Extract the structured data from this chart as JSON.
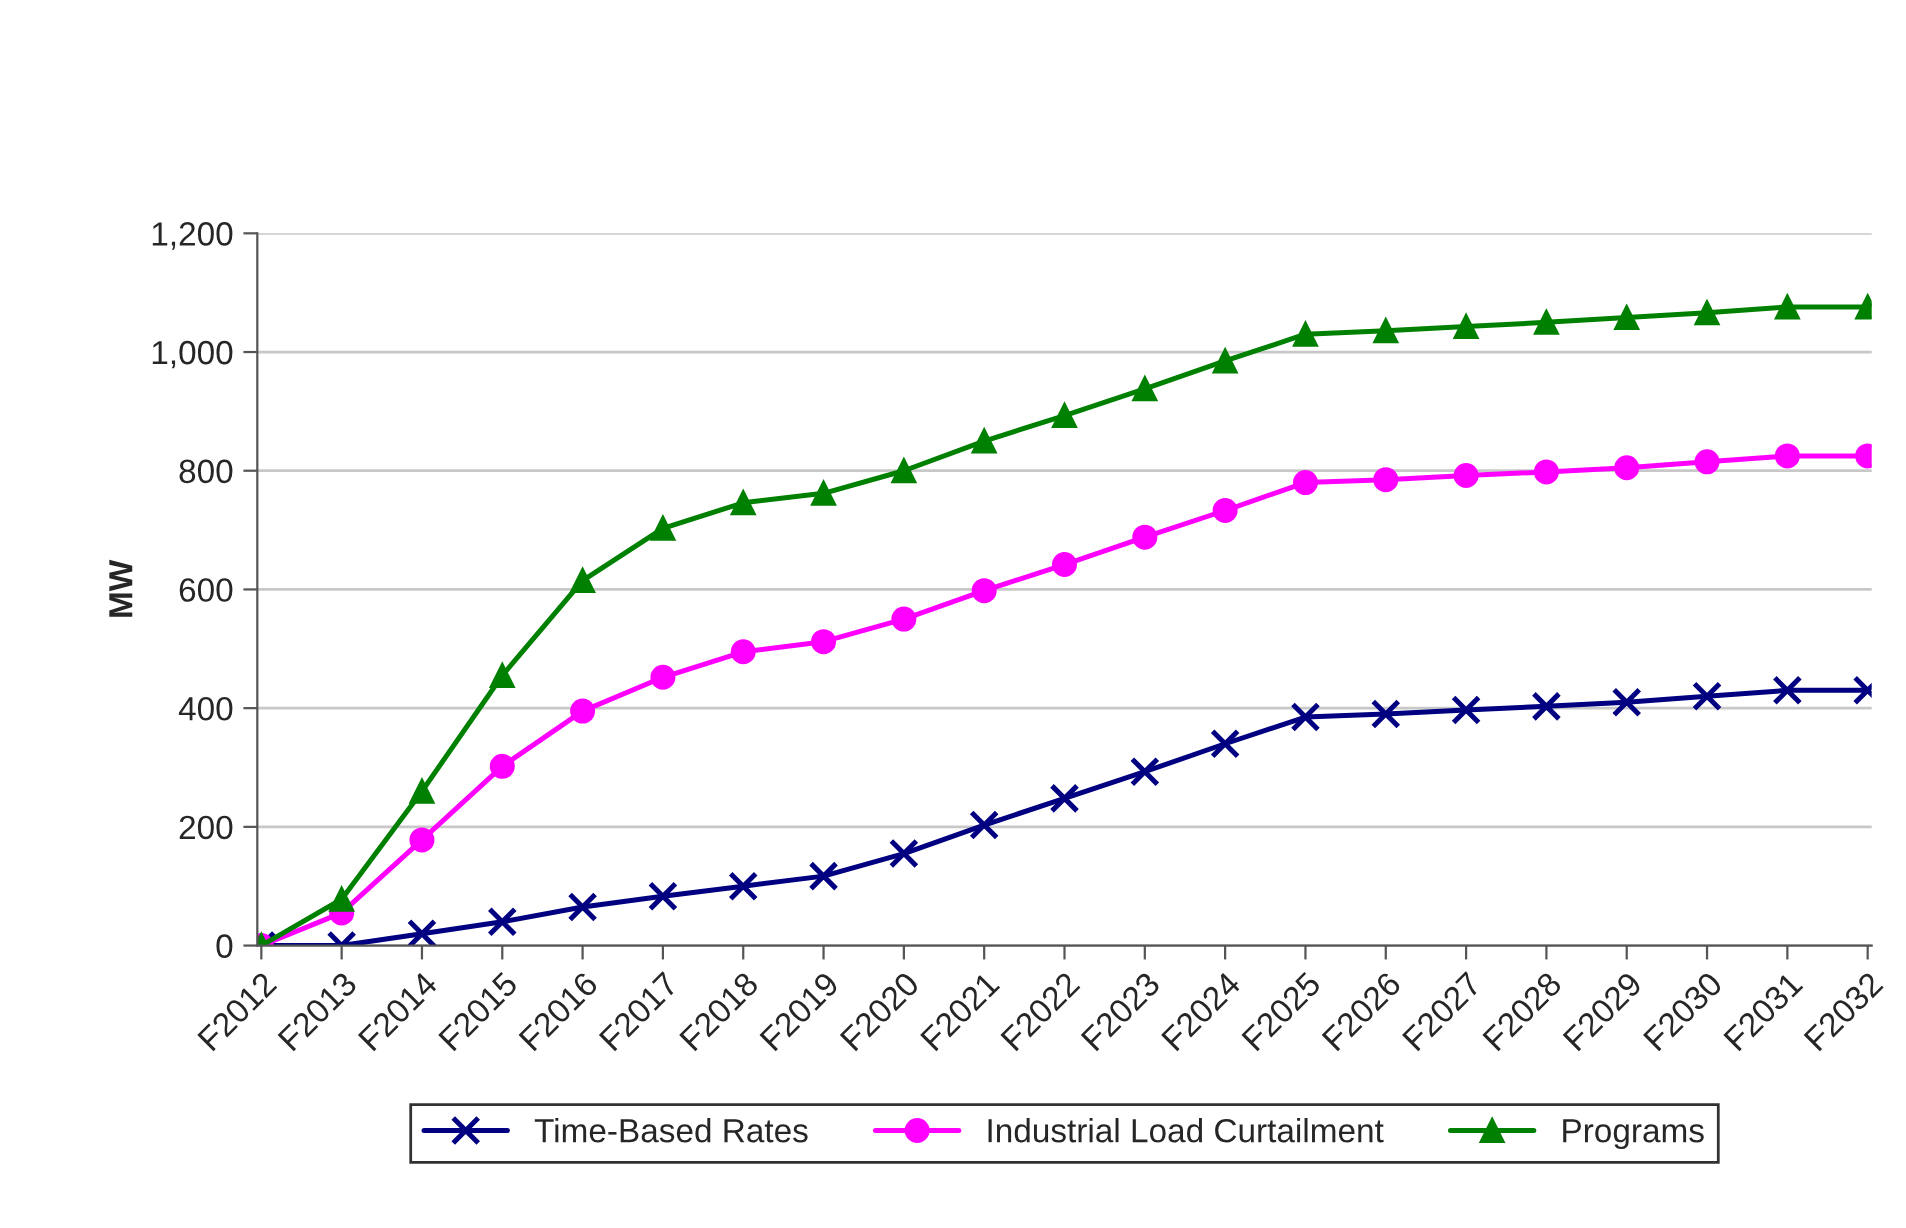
{
  "chart_data": {
    "type": "line",
    "ylabel": "MW",
    "categories": [
      "F2012",
      "F2013",
      "F2014",
      "F2015",
      "F2016",
      "F2017",
      "F2018",
      "F2019",
      "F2020",
      "F2021",
      "F2022",
      "F2023",
      "F2024",
      "F2025",
      "F2026",
      "F2027",
      "F2028",
      "F2029",
      "F2030",
      "F2031",
      "F2032"
    ],
    "series": [
      {
        "name": "Time-Based Rates",
        "color": "#000080",
        "marker": "cross",
        "values": [
          0,
          0,
          20,
          40,
          65,
          83,
          100,
          117,
          155,
          203,
          248,
          293,
          340,
          385,
          390,
          397,
          403,
          410,
          420,
          430,
          430
        ]
      },
      {
        "name": "Industrial Load Curtailment",
        "color": "#ff00ff",
        "marker": "circle",
        "values": [
          0,
          55,
          178,
          302,
          395,
          452,
          495,
          512,
          550,
          598,
          642,
          688,
          733,
          780,
          785,
          792,
          798,
          805,
          815,
          825,
          825
        ]
      },
      {
        "name": "Programs",
        "color": "#008000",
        "marker": "triangle",
        "values": [
          0,
          78,
          260,
          455,
          615,
          703,
          746,
          762,
          800,
          850,
          893,
          938,
          985,
          1030,
          1036,
          1043,
          1050,
          1058,
          1066,
          1076,
          1076
        ]
      }
    ],
    "ylim": [
      0,
      1200
    ],
    "yticks": [
      {
        "value": 0,
        "label": "0"
      },
      {
        "value": 200,
        "label": "200"
      },
      {
        "value": 400,
        "label": "400"
      },
      {
        "value": 600,
        "label": "600"
      },
      {
        "value": 800,
        "label": "800"
      },
      {
        "value": 1000,
        "label": "1,000"
      },
      {
        "value": 1200,
        "label": "1,200"
      }
    ],
    "grid": "y",
    "legend": "bottom",
    "line_style": "solid"
  }
}
